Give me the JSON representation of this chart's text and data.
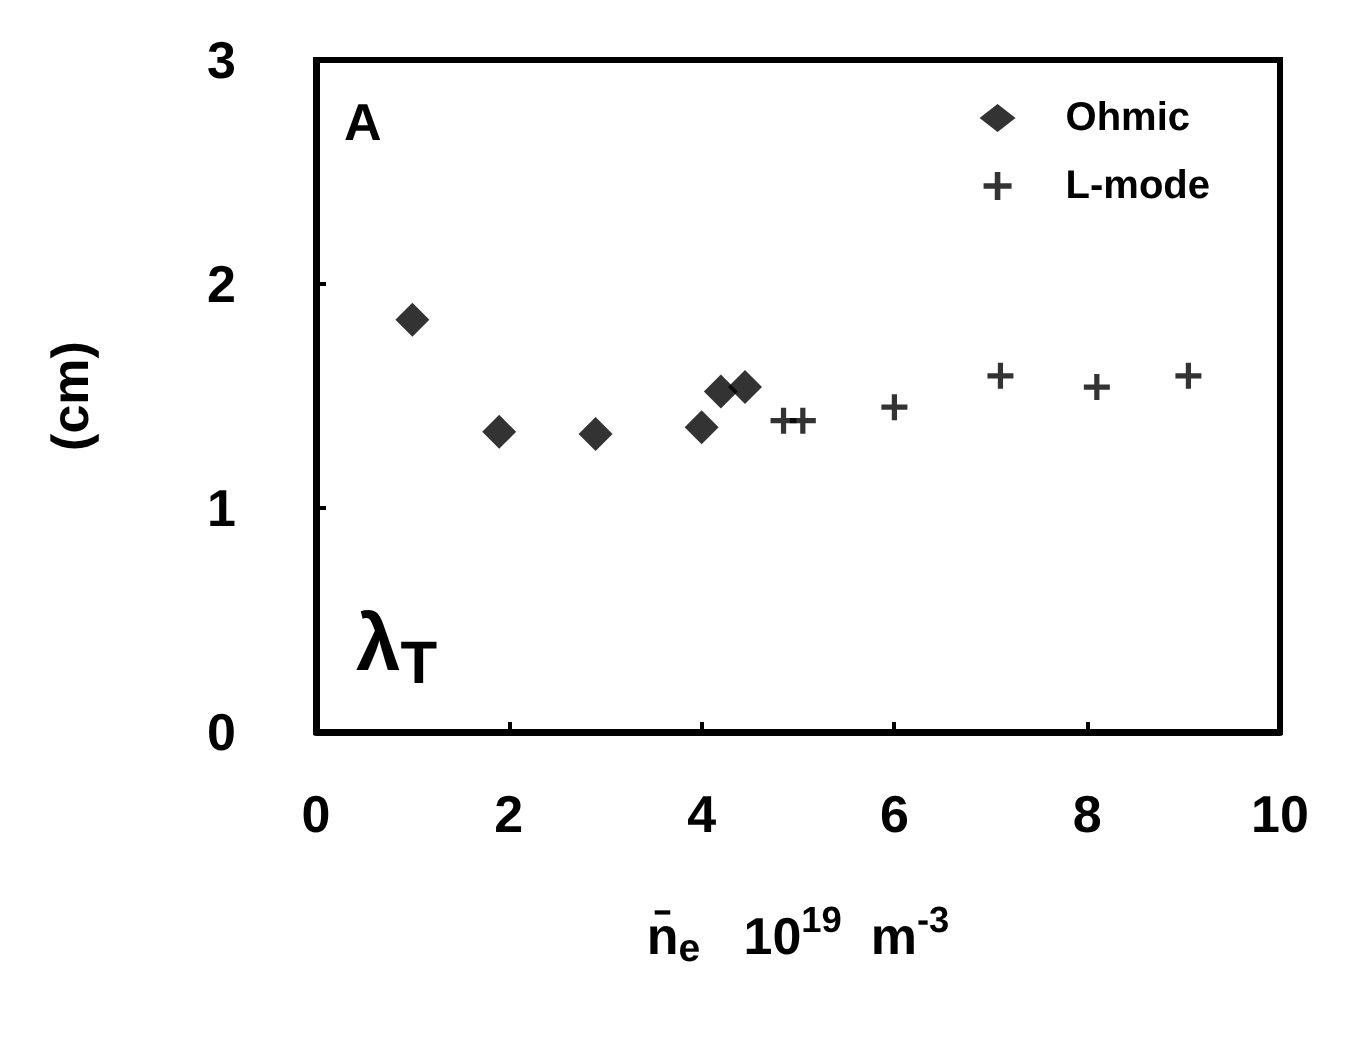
{
  "chart_data": {
    "type": "scatter",
    "xlabel": "n̄$_{e}$   10$^{19}$  m$^{-3}$",
    "ylabel": "(cm)",
    "annotations": [
      "A",
      "λ$_{T}$"
    ],
    "xlim": [
      0,
      10
    ],
    "xticks": [
      0,
      2,
      4,
      6,
      8,
      10
    ],
    "ylim": [
      0,
      3
    ],
    "yticks": [
      0,
      1,
      2,
      3
    ],
    "grid": false,
    "legend": "top right",
    "series": [
      {
        "name": "Ohmic",
        "color": "#000000",
        "marker": "diamond",
        "x": [
          1.0,
          1.9,
          2.9,
          4.0,
          4.2,
          4.45
        ],
        "values": [
          1.84,
          1.34,
          1.33,
          1.36,
          1.52,
          1.54
        ]
      },
      {
        "name": "L-mode",
        "color": "#000000",
        "marker": "cross",
        "x": [
          4.85,
          5.05,
          6.0,
          7.1,
          8.1,
          9.05
        ],
        "values": [
          1.39,
          1.39,
          1.45,
          1.59,
          1.54,
          1.59
        ]
      }
    ]
  }
}
